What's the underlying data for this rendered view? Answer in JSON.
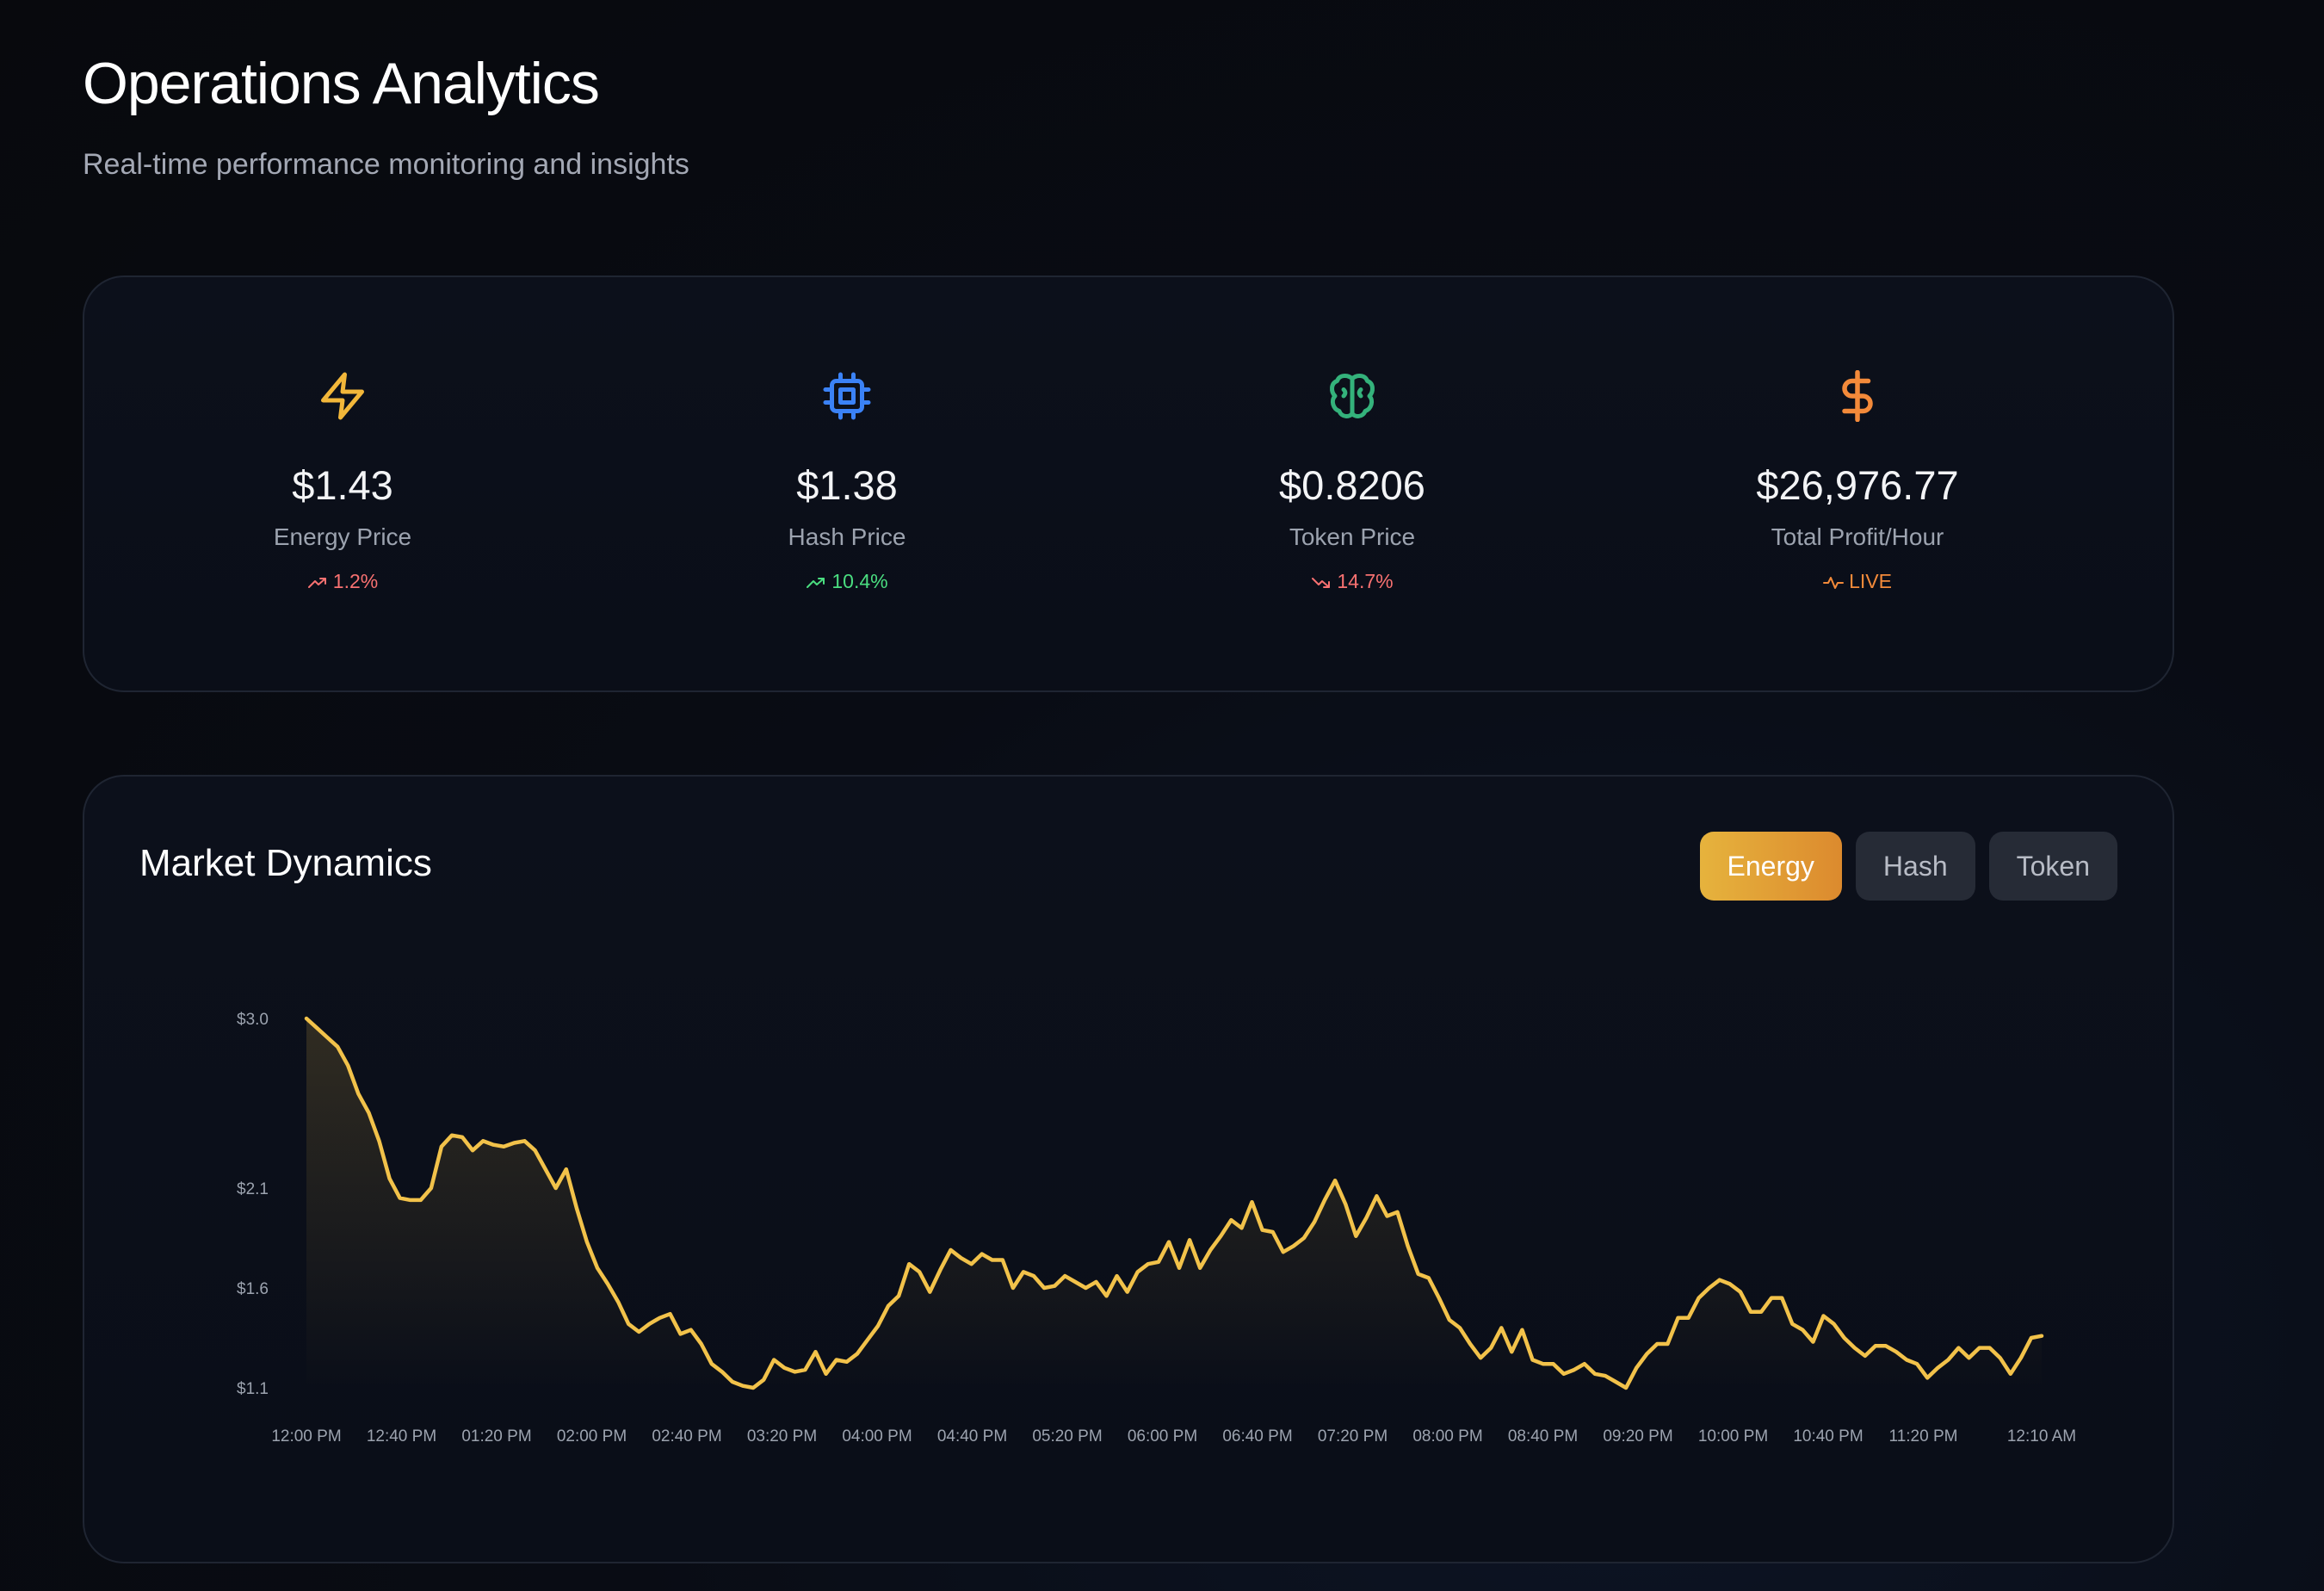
{
  "header": {
    "title": "Operations Analytics",
    "subtitle": "Real-time performance monitoring and insights"
  },
  "stats": [
    {
      "icon": "lightning-icon",
      "value": "$1.43",
      "label": "Energy Price",
      "change": "1.2%",
      "trend": "up",
      "change_color": "#f87171",
      "icon_color": "#f2b73a"
    },
    {
      "icon": "cpu-chip-icon",
      "value": "$1.38",
      "label": "Hash Price",
      "change": "10.4%",
      "trend": "up",
      "change_color": "#4ade80",
      "icon_color": "#3b82f6"
    },
    {
      "icon": "brain-icon",
      "value": "$0.8206",
      "label": "Token Price",
      "change": "14.7%",
      "trend": "down",
      "change_color": "#f87171",
      "icon_color": "#34b27b"
    },
    {
      "icon": "dollar-icon",
      "value": "$26,976.77",
      "label": "Total Profit/Hour",
      "change": "LIVE",
      "trend": "live",
      "change_color": "#f38a3a",
      "icon_color": "#f38a3a"
    }
  ],
  "chart_section": {
    "title": "Market Dynamics",
    "tabs": [
      {
        "label": "Energy",
        "active": true
      },
      {
        "label": "Hash",
        "active": false
      },
      {
        "label": "Token",
        "active": false
      }
    ]
  },
  "chart_data": {
    "type": "area",
    "title": "Market Dynamics",
    "series": [
      {
        "values": [
          3.0,
          2.95,
          2.9,
          2.85,
          2.75,
          2.6,
          2.5,
          2.35,
          2.15,
          2.05,
          2.04,
          2.04,
          2.1,
          2.32,
          2.38,
          2.37,
          2.3,
          2.35,
          2.33,
          2.32,
          2.34,
          2.35,
          2.3,
          2.2,
          2.1,
          2.2,
          2.0,
          1.83,
          1.7,
          1.62,
          1.53,
          1.42,
          1.38,
          1.42,
          1.45,
          1.47,
          1.37,
          1.39,
          1.32,
          1.22,
          1.18,
          1.13,
          1.11,
          1.1,
          1.14,
          1.24,
          1.2,
          1.18,
          1.19,
          1.28,
          1.17,
          1.24,
          1.23,
          1.27,
          1.34,
          1.41,
          1.51,
          1.56,
          1.72,
          1.68,
          1.58,
          1.69,
          1.79,
          1.75,
          1.72,
          1.77,
          1.74,
          1.74,
          1.6,
          1.68,
          1.66,
          1.6,
          1.61,
          1.66,
          1.63,
          1.6,
          1.63,
          1.56,
          1.66,
          1.58,
          1.68,
          1.72,
          1.73,
          1.83,
          1.7,
          1.84,
          1.7,
          1.79,
          1.86,
          1.94,
          1.9,
          2.03,
          1.89,
          1.88,
          1.78,
          1.81,
          1.85,
          1.93,
          2.04,
          2.14,
          2.02,
          1.86,
          1.95,
          2.06,
          1.96,
          1.98,
          1.81,
          1.67,
          1.65,
          1.55,
          1.44,
          1.4,
          1.32,
          1.25,
          1.3,
          1.4,
          1.28,
          1.39,
          1.24,
          1.22,
          1.22,
          1.17,
          1.19,
          1.22,
          1.17,
          1.16,
          1.13,
          1.1,
          1.2,
          1.27,
          1.32,
          1.32,
          1.45,
          1.45,
          1.55,
          1.6,
          1.64,
          1.62,
          1.58,
          1.48,
          1.48,
          1.55,
          1.55,
          1.42,
          1.39,
          1.33,
          1.46,
          1.42,
          1.35,
          1.3,
          1.26,
          1.31,
          1.31,
          1.28,
          1.24,
          1.22,
          1.15,
          1.2,
          1.24,
          1.3,
          1.25,
          1.3,
          1.3,
          1.25,
          1.17,
          1.25,
          1.35,
          1.36
        ]
      }
    ],
    "x_labels": [
      "12:00 PM",
      "12:40 PM",
      "01:20 PM",
      "02:00 PM",
      "02:40 PM",
      "03:20 PM",
      "04:00 PM",
      "04:40 PM",
      "05:20 PM",
      "06:00 PM",
      "06:40 PM",
      "07:20 PM",
      "08:00 PM",
      "08:40 PM",
      "09:20 PM",
      "10:00 PM",
      "10:40 PM",
      "11:20 PM",
      "12:10 AM"
    ],
    "y_ticks": [
      {
        "label": "$3.0",
        "value": 3.0
      },
      {
        "label": "$2.1",
        "value": 2.1
      },
      {
        "label": "$1.6",
        "value": 1.6
      },
      {
        "label": "$1.1",
        "value": 1.1
      }
    ],
    "ylim": [
      1.1,
      3.0
    ],
    "grid": false,
    "line_color": "#f2c24a"
  }
}
